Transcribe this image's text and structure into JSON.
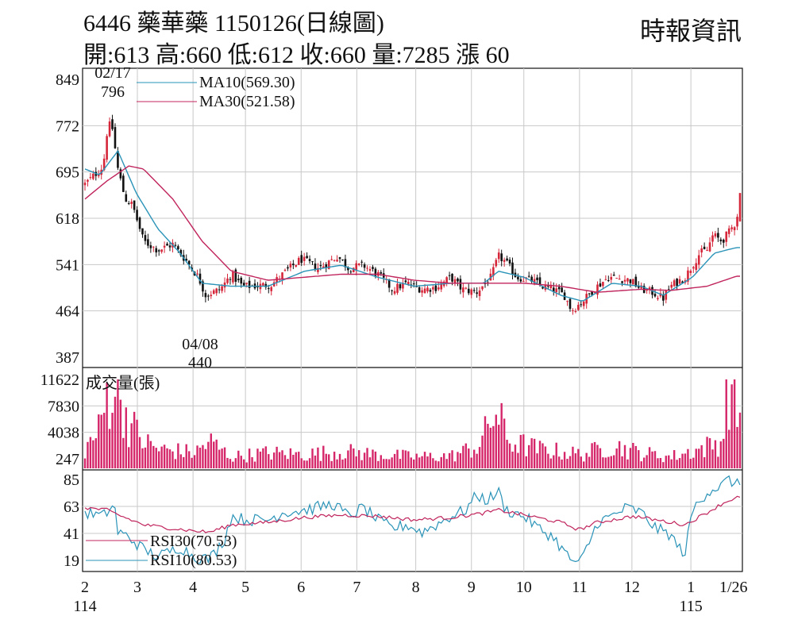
{
  "header": {
    "title": "6446  藥華藥 1150126(日線圖)",
    "quote": "開:613 高:660 低:612 收:660 量:7285 漲 60",
    "source": "時報資訊"
  },
  "colors": {
    "up": "#d6263a",
    "down": "#111111",
    "ma10": "#2a93b8",
    "ma30": "#c0245c",
    "volume": "#d6266a",
    "rsi30": "#c0245c",
    "rsi10": "#2a93b8",
    "grid": "#c8c8c8"
  },
  "chart_data": [
    {
      "type": "candlestick",
      "y_ticks": [
        "849",
        "772",
        "695",
        "618",
        "541",
        "464",
        "387"
      ],
      "ylim": [
        387,
        849
      ],
      "annotations": [
        {
          "date": "02/17",
          "value": "796"
        },
        {
          "date": "04/08",
          "value": "440"
        }
      ],
      "series": [
        {
          "name": "MA10(569.30)"
        },
        {
          "name": "MA30(521.58)"
        }
      ],
      "last_bar": {
        "open": 613,
        "high": 660,
        "low": 612,
        "close": 660
      },
      "anchors_close": [
        [
          0.0,
          675
        ],
        [
          0.013,
          690
        ],
        [
          0.025,
          705
        ],
        [
          0.03,
          760
        ],
        [
          0.036,
          780
        ],
        [
          0.045,
          700
        ],
        [
          0.055,
          650
        ],
        [
          0.065,
          640
        ],
        [
          0.08,
          580
        ],
        [
          0.1,
          565
        ],
        [
          0.12,
          575
        ],
        [
          0.14,
          545
        ],
        [
          0.155,
          520
        ],
        [
          0.165,
          490
        ],
        [
          0.185,
          500
        ],
        [
          0.2,
          525
        ],
        [
          0.215,
          505
        ],
        [
          0.23,
          505
        ],
        [
          0.255,
          508
        ],
        [
          0.275,
          530
        ],
        [
          0.295,
          550
        ],
        [
          0.32,
          535
        ],
        [
          0.345,
          555
        ],
        [
          0.36,
          535
        ],
        [
          0.38,
          540
        ],
        [
          0.4,
          525
        ],
        [
          0.42,
          500
        ],
        [
          0.44,
          510
        ],
        [
          0.46,
          500
        ],
        [
          0.48,
          503
        ],
        [
          0.5,
          520
        ],
        [
          0.515,
          500
        ],
        [
          0.535,
          495
        ],
        [
          0.555,
          520
        ],
        [
          0.565,
          555
        ],
        [
          0.575,
          545
        ],
        [
          0.59,
          520
        ],
        [
          0.61,
          515
        ],
        [
          0.625,
          505
        ],
        [
          0.64,
          500
        ],
        [
          0.655,
          490
        ],
        [
          0.665,
          465
        ],
        [
          0.68,
          480
        ],
        [
          0.695,
          500
        ],
        [
          0.715,
          520
        ],
        [
          0.73,
          518
        ],
        [
          0.745,
          515
        ],
        [
          0.76,
          500
        ],
        [
          0.775,
          495
        ],
        [
          0.79,
          485
        ],
        [
          0.8,
          505
        ],
        [
          0.82,
          520
        ],
        [
          0.84,
          560
        ],
        [
          0.85,
          565
        ],
        [
          0.858,
          590
        ],
        [
          0.87,
          580
        ],
        [
          0.88,
          595
        ],
        [
          0.89,
          613
        ],
        [
          0.895,
          660
        ]
      ],
      "ma10_anchors": [
        [
          0.0,
          700
        ],
        [
          0.02,
          690
        ],
        [
          0.045,
          730
        ],
        [
          0.07,
          660
        ],
        [
          0.1,
          600
        ],
        [
          0.13,
          560
        ],
        [
          0.16,
          510
        ],
        [
          0.2,
          505
        ],
        [
          0.25,
          505
        ],
        [
          0.3,
          530
        ],
        [
          0.35,
          540
        ],
        [
          0.4,
          520
        ],
        [
          0.45,
          505
        ],
        [
          0.5,
          510
        ],
        [
          0.545,
          510
        ],
        [
          0.565,
          530
        ],
        [
          0.6,
          520
        ],
        [
          0.65,
          490
        ],
        [
          0.68,
          480
        ],
        [
          0.72,
          510
        ],
        [
          0.76,
          505
        ],
        [
          0.79,
          490
        ],
        [
          0.83,
          520
        ],
        [
          0.86,
          560
        ],
        [
          0.89,
          569.3
        ]
      ],
      "ma30_anchors": [
        [
          0.0,
          650
        ],
        [
          0.03,
          680
        ],
        [
          0.06,
          705
        ],
        [
          0.08,
          700
        ],
        [
          0.12,
          650
        ],
        [
          0.16,
          580
        ],
        [
          0.2,
          530
        ],
        [
          0.25,
          515
        ],
        [
          0.3,
          520
        ],
        [
          0.35,
          525
        ],
        [
          0.4,
          525
        ],
        [
          0.45,
          515
        ],
        [
          0.5,
          510
        ],
        [
          0.545,
          510
        ],
        [
          0.6,
          510
        ],
        [
          0.65,
          505
        ],
        [
          0.7,
          495
        ],
        [
          0.76,
          500
        ],
        [
          0.8,
          498
        ],
        [
          0.85,
          505
        ],
        [
          0.89,
          521.58
        ]
      ]
    },
    {
      "type": "bar",
      "label": "成交量(張)",
      "y_ticks": [
        "11622",
        "7830",
        "4038",
        "247"
      ],
      "ylim": [
        0,
        11622
      ],
      "last_value": 7285,
      "anchors": [
        [
          0.0,
          2500
        ],
        [
          0.02,
          5000
        ],
        [
          0.03,
          9500
        ],
        [
          0.04,
          11200
        ],
        [
          0.05,
          9000
        ],
        [
          0.06,
          6000
        ],
        [
          0.08,
          3500
        ],
        [
          0.1,
          2500
        ],
        [
          0.15,
          2000
        ],
        [
          0.17,
          3500
        ],
        [
          0.2,
          1500
        ],
        [
          0.25,
          2000
        ],
        [
          0.3,
          1800
        ],
        [
          0.35,
          2200
        ],
        [
          0.4,
          1800
        ],
        [
          0.45,
          1500
        ],
        [
          0.5,
          1600
        ],
        [
          0.54,
          3000
        ],
        [
          0.56,
          7500
        ],
        [
          0.58,
          3500
        ],
        [
          0.62,
          2500
        ],
        [
          0.68,
          1800
        ],
        [
          0.72,
          3000
        ],
        [
          0.76,
          2000
        ],
        [
          0.8,
          1500
        ],
        [
          0.84,
          2500
        ],
        [
          0.87,
          3500
        ],
        [
          0.88,
          11000
        ],
        [
          0.89,
          7285
        ]
      ]
    },
    {
      "type": "line",
      "y_ticks": [
        "85",
        "63",
        "41",
        "19"
      ],
      "ylim": [
        10,
        90
      ],
      "series": [
        {
          "name": "RSI30(70.53)"
        },
        {
          "name": "RSI10(80.53)"
        }
      ],
      "rsi10_anchors": [
        [
          0.0,
          58
        ],
        [
          0.025,
          55
        ],
        [
          0.04,
          65
        ],
        [
          0.045,
          42
        ],
        [
          0.06,
          38
        ],
        [
          0.08,
          28
        ],
        [
          0.1,
          22
        ],
        [
          0.13,
          30
        ],
        [
          0.15,
          22
        ],
        [
          0.17,
          20
        ],
        [
          0.19,
          35
        ],
        [
          0.2,
          55
        ],
        [
          0.22,
          52
        ],
        [
          0.25,
          52
        ],
        [
          0.27,
          58
        ],
        [
          0.3,
          60
        ],
        [
          0.34,
          65
        ],
        [
          0.36,
          55
        ],
        [
          0.38,
          62
        ],
        [
          0.4,
          52
        ],
        [
          0.42,
          45
        ],
        [
          0.44,
          48
        ],
        [
          0.46,
          42
        ],
        [
          0.48,
          48
        ],
        [
          0.5,
          55
        ],
        [
          0.52,
          60
        ],
        [
          0.535,
          72
        ],
        [
          0.55,
          68
        ],
        [
          0.565,
          75
        ],
        [
          0.575,
          60
        ],
        [
          0.6,
          55
        ],
        [
          0.62,
          45
        ],
        [
          0.64,
          38
        ],
        [
          0.66,
          22
        ],
        [
          0.675,
          15
        ],
        [
          0.69,
          35
        ],
        [
          0.7,
          50
        ],
        [
          0.72,
          55
        ],
        [
          0.74,
          62
        ],
        [
          0.76,
          58
        ],
        [
          0.78,
          45
        ],
        [
          0.8,
          40
        ],
        [
          0.81,
          30
        ],
        [
          0.82,
          25
        ],
        [
          0.83,
          60
        ],
        [
          0.85,
          75
        ],
        [
          0.87,
          80
        ],
        [
          0.88,
          85
        ],
        [
          0.89,
          80.53
        ]
      ],
      "rsi30_anchors": [
        [
          0.0,
          62
        ],
        [
          0.03,
          60
        ],
        [
          0.05,
          55
        ],
        [
          0.08,
          48
        ],
        [
          0.12,
          45
        ],
        [
          0.15,
          43
        ],
        [
          0.17,
          42
        ],
        [
          0.2,
          48
        ],
        [
          0.25,
          50
        ],
        [
          0.3,
          54
        ],
        [
          0.35,
          56
        ],
        [
          0.4,
          55
        ],
        [
          0.45,
          52
        ],
        [
          0.5,
          54
        ],
        [
          0.54,
          57
        ],
        [
          0.565,
          60
        ],
        [
          0.6,
          56
        ],
        [
          0.65,
          50
        ],
        [
          0.675,
          44
        ],
        [
          0.7,
          50
        ],
        [
          0.75,
          55
        ],
        [
          0.8,
          50
        ],
        [
          0.82,
          48
        ],
        [
          0.85,
          58
        ],
        [
          0.87,
          65
        ],
        [
          0.89,
          70.53
        ]
      ]
    }
  ],
  "x_axis": {
    "month_ticks": [
      {
        "label": "2",
        "pos": 0.0
      },
      {
        "label": "3",
        "pos": 0.08
      },
      {
        "label": "4",
        "pos": 0.165
      },
      {
        "label": "5",
        "pos": 0.245
      },
      {
        "label": "6",
        "pos": 0.33
      },
      {
        "label": "7",
        "pos": 0.415
      },
      {
        "label": "8",
        "pos": 0.505
      },
      {
        "label": "9",
        "pos": 0.59
      },
      {
        "label": "10",
        "pos": 0.67
      },
      {
        "label": "11",
        "pos": 0.755
      },
      {
        "label": "12",
        "pos": 0.835
      },
      {
        "label": "1",
        "pos": 0.925
      },
      {
        "label": "1/26",
        "pos": 0.99
      }
    ],
    "year_labels": [
      {
        "label": "114",
        "pos": 0.0
      },
      {
        "label": "115",
        "pos": 0.925
      }
    ]
  }
}
